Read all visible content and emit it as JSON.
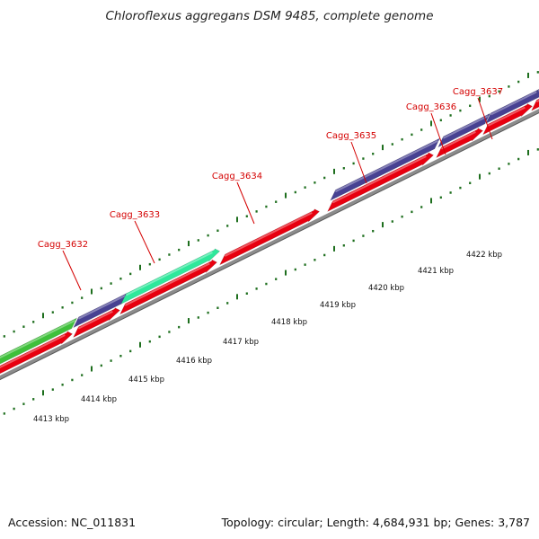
{
  "map": {
    "title": "Chloroflexus aggregans DSM 9485, complete genome",
    "accession_text": "Accession: NC_011831",
    "summary_text": "Topology: circular; Length: 4,684,931 bp; Genes: 3,787"
  },
  "colors": {
    "forward_cds": "#e8000f",
    "cog_blue": "#474192",
    "cog_green": "#3ec03a",
    "cog_cyan": "#2ee89b",
    "backbone": "#8c8c8c",
    "tick_green": "#1d6e1d",
    "label_red": "#d40000"
  },
  "features": {
    "top_row": [
      {
        "color": "cog_green"
      },
      {
        "color": "cog_blue"
      },
      {
        "color": "cog_cyan"
      },
      {
        "color": "cog_blue"
      },
      {
        "color": "cog_blue"
      },
      {
        "color": "cog_blue"
      },
      {
        "color": "cog_blue"
      }
    ],
    "bottom_row": [
      {
        "color": "forward_cds"
      },
      {
        "color": "forward_cds"
      },
      {
        "color": "forward_cds"
      },
      {
        "color": "forward_cds"
      },
      {
        "color": "forward_cds"
      },
      {
        "color": "forward_cds"
      },
      {
        "color": "forward_cds"
      },
      {
        "color": "forward_cds"
      }
    ]
  },
  "gene_labels": [
    {
      "text": "Cagg_3632"
    },
    {
      "text": "Cagg_3633"
    },
    {
      "text": "Cagg_3634"
    },
    {
      "text": "Cagg_3635"
    },
    {
      "text": "Cagg_3636"
    },
    {
      "text": "Cagg_3637"
    }
  ],
  "kbp_labels": [
    {
      "text": "4413 kbp"
    },
    {
      "text": "4414 kbp"
    },
    {
      "text": "4415 kbp"
    },
    {
      "text": "4416 kbp"
    },
    {
      "text": "4417 kbp"
    },
    {
      "text": "4418 kbp"
    },
    {
      "text": "4419 kbp"
    },
    {
      "text": "4420 kbp"
    },
    {
      "text": "4421 kbp"
    },
    {
      "text": "4422 kbp"
    }
  ]
}
